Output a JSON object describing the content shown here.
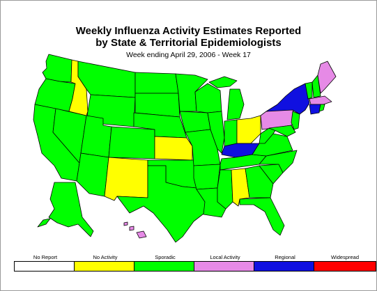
{
  "title_line1": "Weekly Influenza Activity Estimates Reported",
  "title_line2": "by State & Territorial Epidemiologists",
  "subtitle": "Week ending April 29, 2006 - Week 17",
  "colors": {
    "no_report": "#ffffff",
    "no_activity": "#ffff00",
    "sporadic": "#00ff00",
    "local": "#e68ae6",
    "regional": "#1010e0",
    "widespread": "#ff0000",
    "outline": "#000000"
  },
  "legend": [
    {
      "label": "No Report",
      "color": "#ffffff"
    },
    {
      "label": "No Activity",
      "color": "#ffff00"
    },
    {
      "label": "Sporadic",
      "color": "#00ff00"
    },
    {
      "label": "Local Activity",
      "color": "#e68ae6"
    },
    {
      "label": "Regional",
      "color": "#1010e0"
    },
    {
      "label": "Widespread",
      "color": "#ff0000"
    }
  ],
  "state_activity": {
    "no_activity": [
      "Idaho",
      "Kansas",
      "New Mexico",
      "Alabama",
      "Ohio"
    ],
    "local": [
      "Pennsylvania",
      "Maine",
      "Massachusetts",
      "Hawaii"
    ],
    "regional": [
      "New York",
      "Kentucky",
      "Connecticut"
    ],
    "sporadic": "all other states"
  }
}
